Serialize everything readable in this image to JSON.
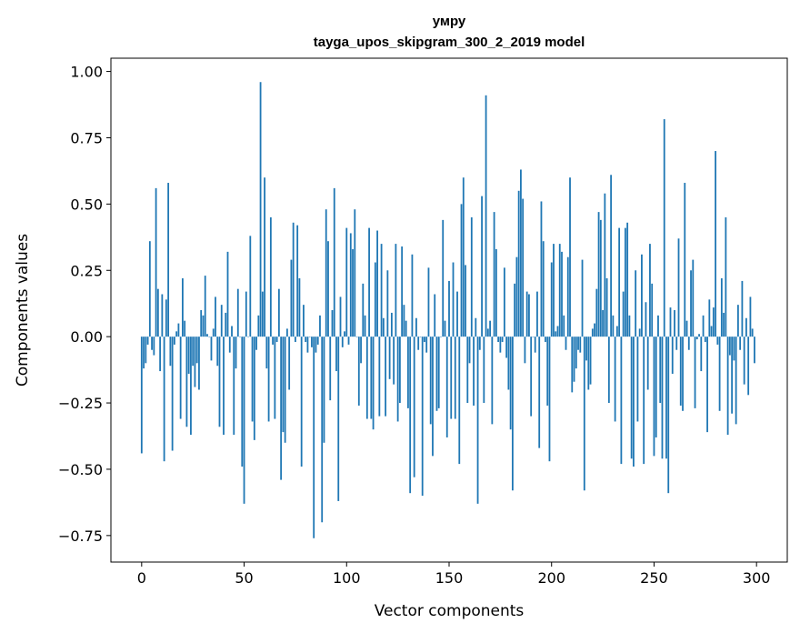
{
  "chart_data": {
    "type": "bar",
    "title": "умру",
    "subtitle": "tayga_upos_skipgram_300_2_2019 model",
    "xlabel": "Vector components",
    "ylabel": "Components values",
    "xlim": [
      -15,
      315
    ],
    "ylim": [
      -0.85,
      1.05
    ],
    "xticks": [
      "0",
      "50",
      "100",
      "150",
      "200",
      "250",
      "300"
    ],
    "yticks": [
      "−0.75",
      "−0.50",
      "−0.25",
      "0.00",
      "0.25",
      "0.50",
      "0.75",
      "1.00"
    ],
    "bar_color": "#1f77b4",
    "values": [
      -0.44,
      -0.12,
      -0.1,
      -0.03,
      0.36,
      -0.05,
      -0.07,
      0.56,
      0.18,
      -0.13,
      0.16,
      -0.47,
      0.14,
      0.58,
      -0.11,
      -0.43,
      -0.03,
      0.02,
      0.05,
      -0.31,
      0.22,
      0.06,
      -0.34,
      -0.14,
      -0.37,
      -0.11,
      -0.19,
      -0.1,
      -0.2,
      0.1,
      0.08,
      0.23,
      0.01,
      0.0,
      -0.09,
      0.03,
      0.15,
      -0.11,
      -0.34,
      0.12,
      -0.37,
      0.09,
      0.32,
      -0.06,
      0.04,
      -0.37,
      -0.12,
      0.18,
      0.0,
      -0.49,
      -0.63,
      0.17,
      0.0,
      0.38,
      -0.32,
      -0.39,
      -0.05,
      0.08,
      0.96,
      0.17,
      0.6,
      -0.12,
      -0.32,
      0.45,
      -0.03,
      -0.31,
      -0.02,
      0.18,
      -0.54,
      -0.36,
      -0.4,
      0.03,
      -0.2,
      0.29,
      0.43,
      -0.02,
      0.42,
      0.22,
      -0.49,
      0.12,
      -0.02,
      -0.06,
      0.0,
      -0.04,
      -0.76,
      -0.06,
      -0.03,
      0.08,
      -0.7,
      -0.4,
      0.48,
      0.36,
      -0.24,
      0.1,
      0.56,
      -0.13,
      -0.62,
      0.15,
      -0.04,
      0.02,
      0.41,
      -0.03,
      0.39,
      0.33,
      0.48,
      0.0,
      -0.26,
      -0.1,
      0.2,
      0.08,
      -0.31,
      0.41,
      -0.31,
      -0.35,
      0.28,
      0.4,
      -0.3,
      0.35,
      0.07,
      -0.3,
      0.25,
      -0.16,
      0.09,
      -0.18,
      0.35,
      -0.32,
      -0.25,
      0.34,
      0.12,
      0.06,
      -0.27,
      -0.59,
      0.31,
      -0.53,
      0.07,
      -0.05,
      0.0,
      -0.6,
      -0.02,
      -0.06,
      0.26,
      -0.33,
      -0.45,
      0.16,
      -0.28,
      -0.27,
      0.0,
      0.44,
      0.06,
      -0.38,
      0.21,
      -0.31,
      0.28,
      -0.31,
      0.17,
      -0.48,
      0.5,
      0.6,
      0.27,
      -0.25,
      -0.1,
      0.45,
      -0.26,
      0.07,
      -0.63,
      -0.05,
      0.53,
      -0.25,
      0.91,
      0.03,
      0.06,
      -0.33,
      0.47,
      0.33,
      -0.02,
      -0.06,
      -0.02,
      0.26,
      -0.08,
      -0.2,
      -0.35,
      -0.58,
      0.2,
      0.3,
      0.55,
      0.63,
      0.52,
      -0.1,
      0.17,
      0.16,
      -0.3,
      0.0,
      -0.06,
      0.17,
      -0.42,
      0.51,
      0.36,
      -0.02,
      -0.26,
      -0.47,
      0.28,
      0.35,
      0.02,
      0.04,
      0.35,
      0.32,
      0.08,
      -0.05,
      0.3,
      0.6,
      -0.21,
      -0.17,
      -0.12,
      -0.05,
      -0.06,
      0.29,
      -0.58,
      -0.09,
      -0.2,
      -0.18,
      0.03,
      0.05,
      0.18,
      0.47,
      0.44,
      0.1,
      0.54,
      0.22,
      -0.25,
      0.61,
      0.08,
      -0.32,
      0.04,
      0.41,
      -0.48,
      0.17,
      0.41,
      0.43,
      0.08,
      -0.46,
      -0.49,
      0.25,
      -0.32,
      0.03,
      0.31,
      -0.48,
      0.13,
      -0.2,
      0.35,
      0.2,
      -0.45,
      -0.38,
      0.08,
      -0.25,
      -0.46,
      0.82,
      -0.46,
      -0.59,
      0.11,
      -0.14,
      0.1,
      -0.05,
      0.37,
      -0.26,
      -0.28,
      0.58,
      0.06,
      -0.05,
      0.25,
      0.29,
      -0.27,
      -0.01,
      0.01,
      -0.13,
      0.08,
      -0.02,
      -0.36,
      0.14,
      0.04,
      0.11,
      0.7,
      -0.03,
      -0.28,
      0.22,
      0.09,
      0.45,
      -0.37,
      -0.07,
      -0.29,
      -0.09,
      -0.33,
      0.12,
      -0.05,
      0.21,
      -0.18,
      0.07,
      -0.22,
      0.15,
      0.03,
      -0.1
    ]
  }
}
